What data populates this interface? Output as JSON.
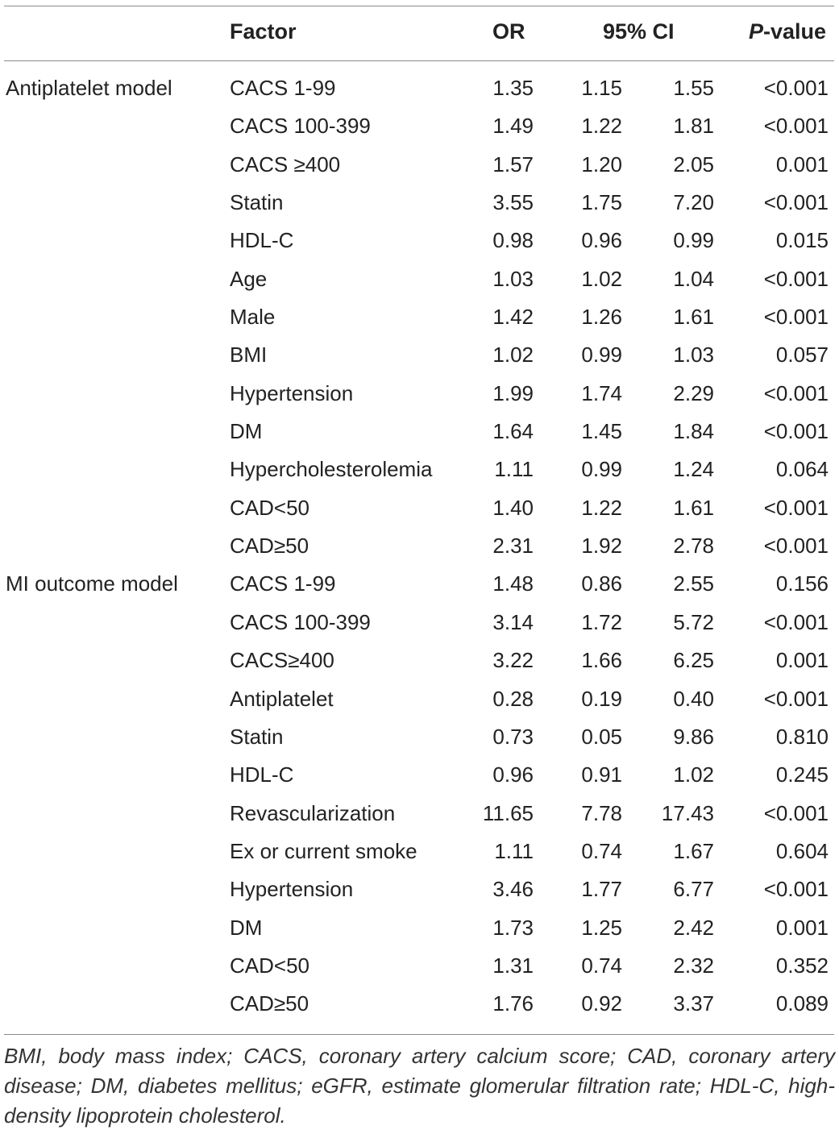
{
  "header": {
    "factor": "Factor",
    "or": "OR",
    "ci": "95% CI",
    "p_italic": "P",
    "p_rest": "-value"
  },
  "rows": [
    {
      "group": "Antiplatelet model",
      "factor": "CACS 1-99",
      "or": "1.35",
      "lo": "1.15",
      "hi": "1.55",
      "p": "<0.001"
    },
    {
      "group": "",
      "factor": "CACS 100-399",
      "or": "1.49",
      "lo": "1.22",
      "hi": "1.81",
      "p": "<0.001"
    },
    {
      "group": "",
      "factor": "CACS ≥400",
      "or": "1.57",
      "lo": "1.20",
      "hi": "2.05",
      "p": "0.001"
    },
    {
      "group": "",
      "factor": "Statin",
      "or": "3.55",
      "lo": "1.75",
      "hi": "7.20",
      "p": "<0.001"
    },
    {
      "group": "",
      "factor": "HDL-C",
      "or": "0.98",
      "lo": "0.96",
      "hi": "0.99",
      "p": "0.015"
    },
    {
      "group": "",
      "factor": "Age",
      "or": "1.03",
      "lo": "1.02",
      "hi": "1.04",
      "p": "<0.001"
    },
    {
      "group": "",
      "factor": "Male",
      "or": "1.42",
      "lo": "1.26",
      "hi": "1.61",
      "p": "<0.001"
    },
    {
      "group": "",
      "factor": "BMI",
      "or": "1.02",
      "lo": "0.99",
      "hi": "1.03",
      "p": "0.057"
    },
    {
      "group": "",
      "factor": "Hypertension",
      "or": "1.99",
      "lo": "1.74",
      "hi": "2.29",
      "p": "<0.001"
    },
    {
      "group": "",
      "factor": "DM",
      "or": "1.64",
      "lo": "1.45",
      "hi": "1.84",
      "p": "<0.001"
    },
    {
      "group": "",
      "factor": "Hypercholesterolemia",
      "or": "1.11",
      "lo": "0.99",
      "hi": "1.24",
      "p": "0.064"
    },
    {
      "group": "",
      "factor": "CAD<50",
      "or": "1.40",
      "lo": "1.22",
      "hi": "1.61",
      "p": "<0.001"
    },
    {
      "group": "",
      "factor": "CAD≥50",
      "or": "2.31",
      "lo": "1.92",
      "hi": "2.78",
      "p": "<0.001"
    },
    {
      "group": "MI outcome model",
      "factor": "CACS 1-99",
      "or": "1.48",
      "lo": "0.86",
      "hi": "2.55",
      "p": "0.156"
    },
    {
      "group": "",
      "factor": "CACS 100-399",
      "or": "3.14",
      "lo": "1.72",
      "hi": "5.72",
      "p": "<0.001"
    },
    {
      "group": "",
      "factor": "CACS≥400",
      "or": "3.22",
      "lo": "1.66",
      "hi": "6.25",
      "p": "0.001"
    },
    {
      "group": "",
      "factor": "Antiplatelet",
      "or": "0.28",
      "lo": "0.19",
      "hi": "0.40",
      "p": "<0.001"
    },
    {
      "group": "",
      "factor": "Statin",
      "or": "0.73",
      "lo": "0.05",
      "hi": "9.86",
      "p": "0.810"
    },
    {
      "group": "",
      "factor": "HDL-C",
      "or": "0.96",
      "lo": "0.91",
      "hi": "1.02",
      "p": "0.245"
    },
    {
      "group": "",
      "factor": "Revascularization",
      "or": "11.65",
      "lo": "7.78",
      "hi": "17.43",
      "p": "<0.001"
    },
    {
      "group": "",
      "factor": "Ex or current smoke",
      "or": "1.11",
      "lo": "0.74",
      "hi": "1.67",
      "p": "0.604"
    },
    {
      "group": "",
      "factor": "Hypertension",
      "or": "3.46",
      "lo": "1.77",
      "hi": "6.77",
      "p": "<0.001"
    },
    {
      "group": "",
      "factor": "DM",
      "or": "1.73",
      "lo": "1.25",
      "hi": "2.42",
      "p": "0.001"
    },
    {
      "group": "",
      "factor": "CAD<50",
      "or": "1.31",
      "lo": "0.74",
      "hi": "2.32",
      "p": "0.352"
    },
    {
      "group": "",
      "factor": "CAD≥50",
      "or": "1.76",
      "lo": "0.92",
      "hi": "3.37",
      "p": "0.089"
    }
  ],
  "footnote": "BMI, body mass index; CACS, coronary artery calcium score; CAD, coronary artery disease; DM, diabetes mellitus; eGFR, estimate glomerular filtration rate; HDL-C, high-density lipoprotein cholesterol."
}
